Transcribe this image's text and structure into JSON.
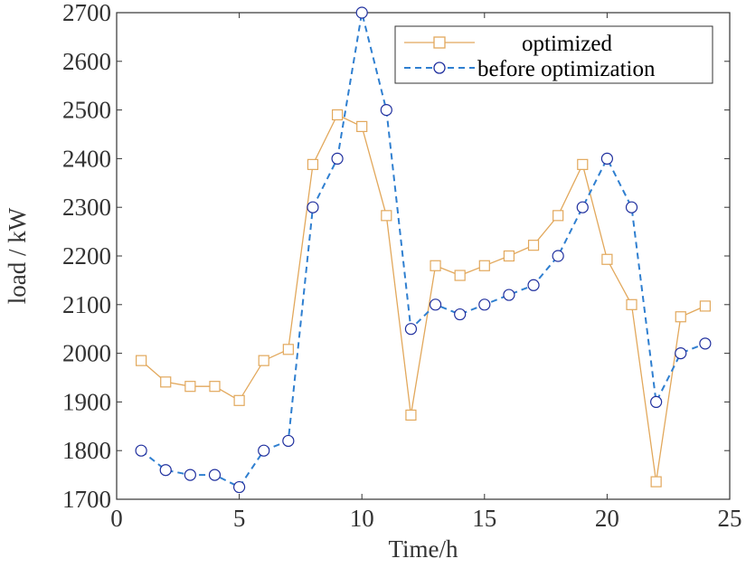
{
  "chart_data": {
    "type": "line",
    "title": "",
    "xlabel": "Time/h",
    "ylabel": "load / kW",
    "xlim": [
      0,
      25
    ],
    "ylim": [
      1700,
      2700
    ],
    "xticks": [
      0,
      5,
      10,
      15,
      20,
      25
    ],
    "yticks": [
      1700,
      1800,
      1900,
      2000,
      2100,
      2200,
      2300,
      2400,
      2500,
      2600,
      2700
    ],
    "grid": false,
    "legend_position": "top-right",
    "x": [
      1,
      2,
      3,
      4,
      5,
      6,
      7,
      8,
      9,
      10,
      11,
      12,
      13,
      14,
      15,
      16,
      17,
      18,
      19,
      20,
      21,
      22,
      23,
      24
    ],
    "series": [
      {
        "name": "optimized",
        "color": "#E2A85C",
        "marker": "square",
        "line_style": "solid",
        "values": [
          1985,
          1941,
          1932,
          1932,
          1903,
          1985,
          2008,
          2388,
          2490,
          2466,
          2283,
          1873,
          2180,
          2160,
          2180,
          2200,
          2222,
          2283,
          2388,
          2193,
          2100,
          1736,
          2075,
          2097
        ]
      },
      {
        "name": "before optimization",
        "color": "#2F7FD0",
        "marker_color": "#1F2F9E",
        "marker": "circle",
        "line_style": "dashed",
        "values": [
          1800,
          1760,
          1750,
          1750,
          1725,
          1800,
          1820,
          2300,
          2400,
          2700,
          2500,
          2050,
          2100,
          2080,
          2100,
          2120,
          2140,
          2200,
          2300,
          2400,
          2300,
          1900,
          2000,
          2020
        ]
      }
    ]
  }
}
